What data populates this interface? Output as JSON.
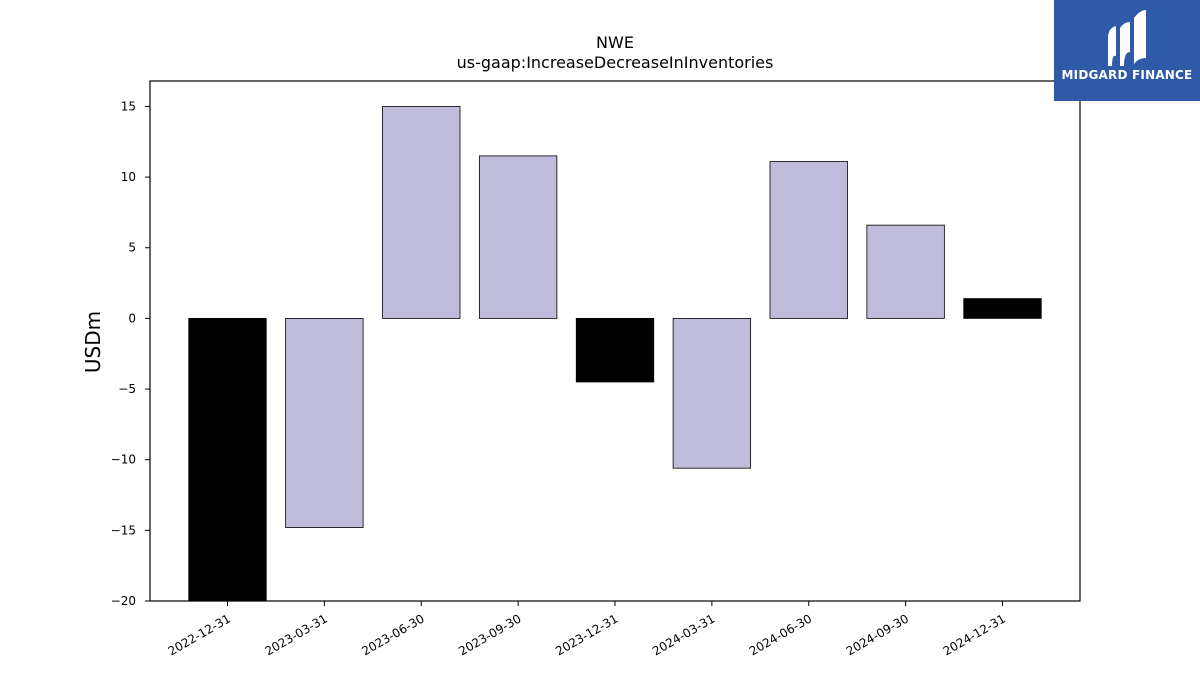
{
  "chart_data": {
    "type": "bar",
    "title": "NWE",
    "subtitle": "us-gaap:IncreaseDecreaseInInventories",
    "xlabel": "",
    "ylabel": "USDm",
    "ylim": [
      -20,
      16.8
    ],
    "yticks": [
      15,
      10,
      5,
      0,
      -5,
      -10,
      -15,
      -20
    ],
    "ytick_labels": [
      "15",
      "10",
      "5",
      "0",
      "−5",
      "−10",
      "−15",
      "−20"
    ],
    "categories": [
      "2022-12-31",
      "2023-03-31",
      "2023-06-30",
      "2023-09-30",
      "2023-12-31",
      "2024-03-31",
      "2024-06-30",
      "2024-09-30",
      "2024-12-31"
    ],
    "values": [
      -20.0,
      -14.8,
      15.0,
      11.5,
      -4.5,
      -10.6,
      11.1,
      6.6,
      1.4
    ],
    "bar_colors": [
      "#000000",
      "#bebbdb",
      "#bebbdb",
      "#bebbdb",
      "#000000",
      "#bebbdb",
      "#bebbdb",
      "#bebbdb",
      "#000000"
    ],
    "grid": false
  },
  "logo": {
    "text": "MIDGARD FINANCE",
    "background": "#2f5aa8"
  }
}
